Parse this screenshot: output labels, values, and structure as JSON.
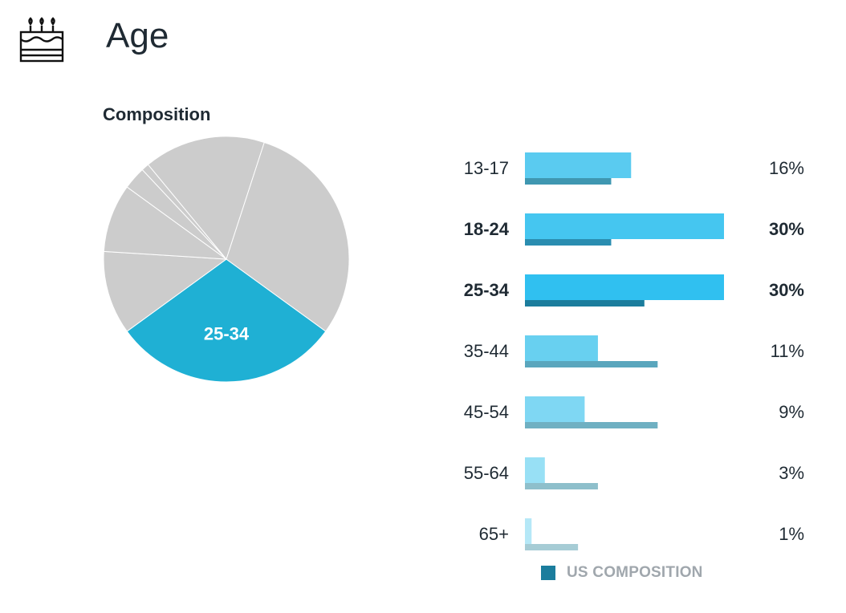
{
  "header": {
    "title": "Age",
    "icon": "birthday-cake-icon"
  },
  "composition": {
    "title": "Composition"
  },
  "legend": {
    "label": "US COMPOSITION",
    "color": "#1b7d9d"
  },
  "chart_data": {
    "type": "bar",
    "categories": [
      "13-17",
      "18-24",
      "25-34",
      "35-44",
      "45-54",
      "55-64",
      "65+"
    ],
    "series": [
      {
        "values": [
          16,
          30,
          30,
          11,
          9,
          3,
          1
        ],
        "labels": [
          "16%",
          "30%",
          "30%",
          "11%",
          "9%",
          "3%",
          "1%"
        ]
      },
      {
        "name": "US COMPOSITION",
        "values": [
          13,
          13,
          18,
          20,
          20,
          11,
          8
        ]
      }
    ],
    "highlighted": [
      "18-24",
      "25-34"
    ],
    "pie_highlight": "25-34",
    "bar_colors": [
      "#5acbf0",
      "#45c6f0",
      "#30c0f0",
      "#68d0f0",
      "#7fd7f3",
      "#98e0f5",
      "#b5e8f7"
    ],
    "us_bar_colors": [
      "#3f97b1",
      "#2a8db0",
      "#1b7d9d",
      "#5aa6bd",
      "#6fb0c2",
      "#8ebfcb",
      "#a6ccd5"
    ],
    "pie_color": "#1fb0d4",
    "pie_other_color": "#cccccc",
    "xlim": [
      0,
      30
    ]
  }
}
